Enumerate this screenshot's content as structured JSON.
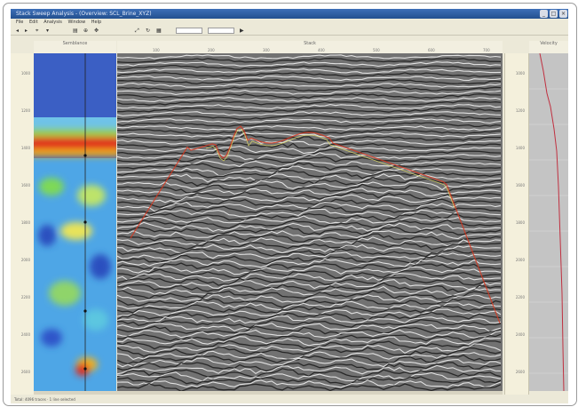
{
  "window": {
    "title": "Stack Sweep Analysis - (Overview: SCL_Brine_XYZ)",
    "minimize_glyph": "_",
    "maximize_glyph": "□",
    "close_glyph": "×"
  },
  "menu": [
    "File",
    "Edit",
    "Analysis",
    "Window",
    "Help"
  ],
  "toolbar": {
    "zoom_value": "",
    "scale_value": ""
  },
  "panels": {
    "left_header": "Semblance",
    "center_header": "Stack",
    "right_header": "Velocity"
  },
  "time_ticks": [
    "1000",
    "1200",
    "1400",
    "1600",
    "1800",
    "2000",
    "2200",
    "2400",
    "2600"
  ],
  "trace_ticks": [
    "100",
    "200",
    "300",
    "400",
    "500",
    "600",
    "700"
  ],
  "status": "Total: 4096 traces · 1 line selected",
  "colors": {
    "title_bar": "#2b5aa0",
    "panel_bg": "#ece9d8",
    "horizon_line": "#d9341b",
    "velocity_curve": "#c03040"
  }
}
